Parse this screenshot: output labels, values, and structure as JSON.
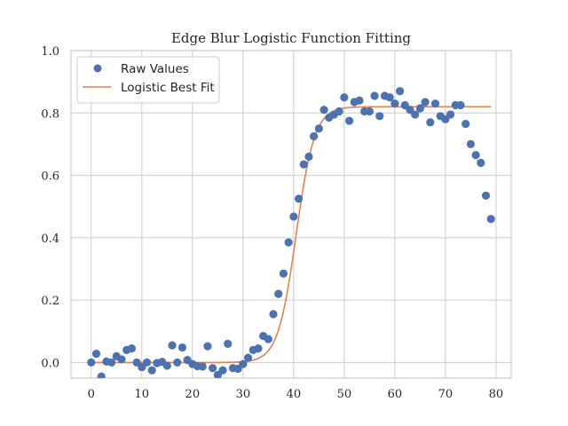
{
  "chart_data": {
    "type": "scatter",
    "title": "Edge Blur Logistic Function Fitting",
    "xlabel": "",
    "ylabel": "",
    "xlim": [
      -4,
      83
    ],
    "ylim": [
      -0.05,
      1.0
    ],
    "x_ticks": [
      "0",
      "10",
      "20",
      "30",
      "40",
      "50",
      "60",
      "70",
      "80"
    ],
    "y_ticks": [
      "0.0",
      "0.2",
      "0.4",
      "0.6",
      "0.8",
      "1.0"
    ],
    "grid": true,
    "legend_position": "top-left",
    "colors": {
      "points": "#4c72b0",
      "fit": "#dd8452"
    },
    "legend": {
      "points_label": "Raw Values",
      "fit_label": "Logistic Best Fit"
    },
    "series": [
      {
        "name": "Raw Values",
        "kind": "scatter",
        "x": [
          0,
          1,
          2,
          3,
          4,
          5,
          6,
          7,
          8,
          9,
          10,
          11,
          12,
          13,
          14,
          15,
          16,
          17,
          18,
          19,
          20,
          21,
          22,
          23,
          24,
          25,
          26,
          27,
          28,
          29,
          30,
          31,
          32,
          33,
          34,
          35,
          36,
          37,
          38,
          39,
          40,
          41,
          42,
          43,
          44,
          45,
          46,
          47,
          48,
          49,
          50,
          51,
          52,
          53,
          54,
          55,
          56,
          57,
          58,
          59,
          60,
          61,
          62,
          63,
          64,
          65,
          66,
          67,
          68,
          69,
          70,
          71,
          72,
          73,
          74,
          75,
          76,
          77,
          78,
          79
        ],
        "y": [
          0.0,
          0.028,
          -0.045,
          0.003,
          0.0,
          0.02,
          0.01,
          0.04,
          0.045,
          0.0,
          -0.015,
          0.0,
          -0.025,
          -0.002,
          0.002,
          -0.01,
          0.055,
          0.0,
          0.048,
          0.008,
          -0.005,
          -0.012,
          -0.013,
          0.052,
          -0.018,
          -0.04,
          -0.025,
          0.06,
          -0.018,
          -0.02,
          -0.005,
          0.015,
          0.04,
          0.045,
          0.085,
          0.075,
          0.155,
          0.22,
          0.285,
          0.385,
          0.468,
          0.525,
          0.635,
          0.66,
          0.725,
          0.75,
          0.81,
          0.785,
          0.795,
          0.805,
          0.85,
          0.775,
          0.835,
          0.84,
          0.805,
          0.805,
          0.855,
          0.79,
          0.855,
          0.85,
          0.83,
          0.87,
          0.825,
          0.81,
          0.795,
          0.815,
          0.835,
          0.77,
          0.83,
          0.79,
          0.78,
          0.795,
          0.825,
          0.825,
          0.765,
          0.7,
          0.665,
          0.64,
          0.535,
          0.46
        ]
      },
      {
        "name": "Logistic Best Fit",
        "kind": "line",
        "L": 0.82,
        "x0": 40.5,
        "k": 0.55,
        "y_offset": 0.0,
        "x_range": [
          0,
          79
        ]
      }
    ]
  }
}
